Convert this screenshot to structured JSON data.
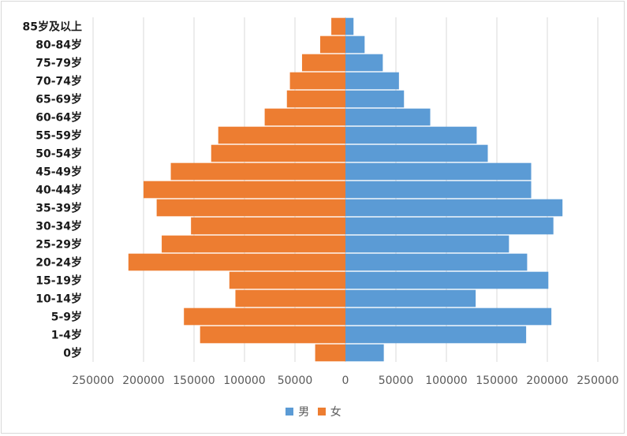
{
  "chart_data": {
    "type": "bar",
    "orientation": "horizontal",
    "categories": [
      "0岁",
      "1-4岁",
      "5-9岁",
      "10-14岁",
      "15-19岁",
      "20-24岁",
      "25-29岁",
      "30-34岁",
      "35-39岁",
      "40-44岁",
      "45-49岁",
      "50-54岁",
      "55-59岁",
      "60-64岁",
      "65-69岁",
      "70-74岁",
      "75-79岁",
      "80-84岁",
      "85岁及以上"
    ],
    "series": [
      {
        "name": "男",
        "color": "#5b9bd5",
        "values": [
          38000,
          179000,
          204000,
          129000,
          201000,
          180000,
          162000,
          206000,
          215000,
          184000,
          184000,
          141000,
          130000,
          84000,
          58000,
          53000,
          37000,
          19000,
          8000
        ]
      },
      {
        "name": "女",
        "color": "#ed7d31",
        "values": [
          30000,
          144000,
          160000,
          109000,
          115000,
          215000,
          182000,
          153000,
          187000,
          200000,
          173000,
          133000,
          126000,
          80000,
          58000,
          55000,
          43000,
          25000,
          14000
        ]
      }
    ],
    "xlim": [
      -250000,
      250000
    ],
    "x_tick_labels": [
      "250000",
      "200000",
      "150000",
      "100000",
      "50000",
      "0",
      "50000",
      "100000",
      "150000",
      "200000",
      "250000"
    ],
    "grid": "vertical",
    "legend": "bottom"
  }
}
